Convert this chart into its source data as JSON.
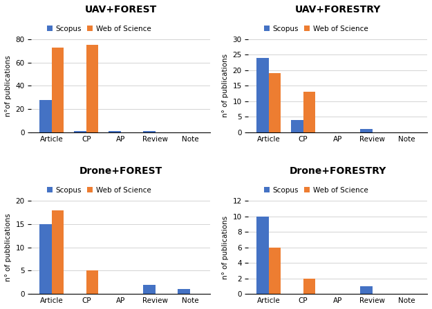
{
  "subplots": [
    {
      "title": "UAV+FOREST",
      "ylabel": "n°of publications",
      "categories": [
        "Article",
        "CP",
        "AP",
        "Review",
        "Note"
      ],
      "scopus": [
        28,
        1,
        1,
        1,
        0
      ],
      "wos": [
        73,
        75,
        0,
        0,
        0
      ],
      "ylim": [
        0,
        80
      ],
      "yticks": [
        0,
        20,
        40,
        60,
        80
      ]
    },
    {
      "title": "UAV+FORESTRY",
      "ylabel": "n° of publications",
      "categories": [
        "Article",
        "CP",
        "AP",
        "Review",
        "Note"
      ],
      "scopus": [
        24,
        4,
        0,
        1,
        0
      ],
      "wos": [
        19,
        13,
        0,
        0,
        0
      ],
      "ylim": [
        0,
        30
      ],
      "yticks": [
        0,
        5,
        10,
        15,
        20,
        25,
        30
      ]
    },
    {
      "title": "Drone+FOREST",
      "ylabel": "n° of pubblications",
      "categories": [
        "Article",
        "CP",
        "AP",
        "Review",
        "Note"
      ],
      "scopus": [
        15,
        0,
        0,
        2,
        1
      ],
      "wos": [
        18,
        5,
        0,
        0,
        0
      ],
      "ylim": [
        0,
        20
      ],
      "yticks": [
        0,
        5,
        10,
        15,
        20
      ]
    },
    {
      "title": "Drone+FORESTRY",
      "ylabel": "n° of publications",
      "categories": [
        "Article",
        "CP",
        "AP",
        "Review",
        "Note"
      ],
      "scopus": [
        10,
        0,
        0,
        1,
        0
      ],
      "wos": [
        6,
        2,
        0,
        0,
        0
      ],
      "ylim": [
        0,
        12
      ],
      "yticks": [
        0,
        2,
        4,
        6,
        8,
        10,
        12
      ]
    }
  ],
  "scopus_color": "#4472C4",
  "wos_color": "#ED7D31",
  "legend_labels": [
    "Scopus",
    "Web of Science"
  ],
  "bar_width": 0.35,
  "title_fontsize": 10,
  "label_fontsize": 7.5,
  "tick_fontsize": 7.5,
  "legend_fontsize": 7.5,
  "background_color": "#ffffff"
}
